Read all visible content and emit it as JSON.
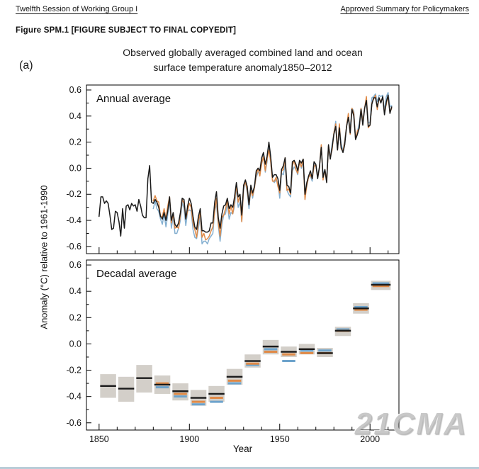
{
  "page": {
    "header_left": "Twelfth Session of Working Group I",
    "header_right": "Approved Summary for Policymakers",
    "figure_caption": "Figure SPM.1 [FIGURE SUBJECT TO FINAL COPYEDIT]",
    "panel_label": "(a)",
    "watermark": "21CMA"
  },
  "chart": {
    "title_line1": "Observed globally averaged combined land and ocean",
    "title_line2": "surface temperature anomaly1850–2012"
  },
  "axes": {
    "ylabel": "Anomaly (°C) relative to 1961-1990",
    "xlabel": "Year",
    "yticks": [
      0.6,
      0.4,
      0.2,
      0.0,
      -0.2,
      -0.4,
      -0.6
    ],
    "ytick_labels": [
      "0.6",
      "0.4",
      "0.2",
      "0.0",
      "-0.2",
      "-0.4",
      "-0.6"
    ],
    "xticks": [
      1850,
      1900,
      1950,
      2000
    ],
    "xtick_labels": [
      "1850",
      "1900",
      "1950",
      "2000"
    ],
    "minor_xtick_step": 10,
    "x_range": [
      1843,
      2016
    ],
    "y_range": [
      -0.655,
      0.638
    ],
    "grid": false,
    "legend": false
  },
  "chart_data": [
    {
      "type": "line",
      "title": "Annual average",
      "x_unit": "year",
      "y_unit": "°C anomaly vs 1961-1990",
      "series": [
        {
          "name": "black",
          "color": "#1a1a1a",
          "start_year": 1850,
          "values": [
            -0.37,
            -0.22,
            -0.22,
            -0.27,
            -0.25,
            -0.27,
            -0.36,
            -0.47,
            -0.46,
            -0.33,
            -0.34,
            -0.41,
            -0.52,
            -0.31,
            -0.46,
            -0.29,
            -0.28,
            -0.32,
            -0.27,
            -0.29,
            -0.28,
            -0.33,
            -0.24,
            -0.29,
            -0.36,
            -0.38,
            -0.38,
            -0.08,
            0.02,
            -0.26,
            -0.27,
            -0.24,
            -0.26,
            -0.3,
            -0.37,
            -0.39,
            -0.34,
            -0.4,
            -0.33,
            -0.22,
            -0.4,
            -0.34,
            -0.43,
            -0.45,
            -0.42,
            -0.34,
            -0.23,
            -0.24,
            -0.39,
            -0.29,
            -0.23,
            -0.27,
            -0.37,
            -0.45,
            -0.47,
            -0.37,
            -0.31,
            -0.48,
            -0.48,
            -0.49,
            -0.49,
            -0.48,
            -0.42,
            -0.42,
            -0.26,
            -0.18,
            -0.38,
            -0.46,
            -0.35,
            -0.29,
            -0.28,
            -0.23,
            -0.31,
            -0.28,
            -0.3,
            -0.22,
            -0.11,
            -0.22,
            -0.2,
            -0.36,
            -0.13,
            -0.09,
            -0.14,
            -0.28,
            -0.13,
            -0.19,
            -0.14,
            -0.02,
            0.0,
            -0.02,
            0.08,
            0.12,
            0.03,
            0.09,
            0.2,
            0.09,
            -0.07,
            -0.05,
            -0.05,
            -0.08,
            -0.17,
            -0.01,
            0.02,
            0.08,
            -0.13,
            -0.14,
            -0.19,
            0.05,
            0.06,
            0.03,
            -0.02,
            0.06,
            0.04,
            0.07,
            -0.2,
            -0.11,
            -0.06,
            -0.02,
            -0.08,
            0.05,
            0.03,
            -0.08,
            0.01,
            0.16,
            -0.07,
            -0.01,
            -0.11,
            0.18,
            0.07,
            0.16,
            0.26,
            0.32,
            0.14,
            0.31,
            0.16,
            0.12,
            0.18,
            0.32,
            0.39,
            0.27,
            0.45,
            0.4,
            0.22,
            0.26,
            0.31,
            0.45,
            0.33,
            0.46,
            0.52,
            0.32,
            0.33,
            0.49,
            0.54,
            0.54,
            0.47,
            0.54,
            0.5,
            0.55,
            0.41,
            0.51,
            0.56,
            0.42,
            0.47
          ]
        },
        {
          "name": "orange",
          "color": "#e08a47",
          "start_year": 1880,
          "values": [
            -0.25,
            -0.21,
            -0.25,
            -0.26,
            -0.37,
            -0.37,
            -0.31,
            -0.39,
            -0.29,
            -0.22,
            -0.42,
            -0.35,
            -0.46,
            -0.45,
            -0.46,
            -0.36,
            -0.24,
            -0.27,
            -0.39,
            -0.33,
            -0.27,
            -0.3,
            -0.42,
            -0.47,
            -0.53,
            -0.41,
            -0.34,
            -0.53,
            -0.5,
            -0.55,
            -0.54,
            -0.52,
            -0.48,
            -0.45,
            -0.33,
            -0.23,
            -0.42,
            -0.52,
            -0.38,
            -0.36,
            -0.31,
            -0.25,
            -0.35,
            -0.29,
            -0.35,
            -0.25,
            -0.13,
            -0.26,
            -0.21,
            -0.41,
            -0.15,
            -0.1,
            -0.17,
            -0.28,
            -0.17,
            -0.21,
            -0.15,
            -0.05,
            0.0,
            -0.06,
            0.04,
            0.09,
            -0.02,
            0.07,
            0.14,
            0.05,
            -0.1,
            -0.1,
            -0.07,
            -0.14,
            -0.19,
            -0.02,
            -0.01,
            0.08,
            -0.17,
            -0.16,
            -0.2,
            0.02,
            0.06,
            -0.01,
            -0.04,
            0.05,
            0.01,
            0.07,
            -0.24,
            -0.13,
            -0.07,
            -0.05,
            -0.08,
            0.01,
            0.03,
            -0.07,
            0.0,
            0.18,
            -0.09,
            -0.01,
            -0.1,
            0.17,
            0.09,
            0.14,
            0.27,
            0.34,
            0.14,
            0.34,
            0.15,
            0.13,
            0.2,
            0.32,
            0.42,
            0.26,
            0.46,
            0.42,
            0.22,
            0.29,
            0.3,
            0.46,
            0.35,
            0.46,
            0.55,
            0.31,
            0.33,
            0.5,
            0.53,
            0.56,
            0.45,
            0.54,
            0.51,
            0.54,
            0.43,
            0.49,
            0.56,
            0.43,
            0.46
          ]
        },
        {
          "name": "blue",
          "color": "#84afd0",
          "start_year": 1880,
          "values": [
            -0.31,
            -0.25,
            -0.31,
            -0.33,
            -0.39,
            -0.43,
            -0.35,
            -0.45,
            -0.36,
            -0.24,
            -0.46,
            -0.37,
            -0.5,
            -0.5,
            -0.46,
            -0.4,
            -0.26,
            -0.31,
            -0.44,
            -0.33,
            -0.32,
            -0.33,
            -0.47,
            -0.53,
            -0.54,
            -0.46,
            -0.37,
            -0.58,
            -0.56,
            -0.56,
            -0.58,
            -0.54,
            -0.52,
            -0.5,
            -0.33,
            -0.27,
            -0.44,
            -0.56,
            -0.43,
            -0.36,
            -0.35,
            -0.27,
            -0.39,
            -0.34,
            -0.35,
            -0.29,
            -0.15,
            -0.3,
            -0.26,
            -0.41,
            -0.17,
            -0.1,
            -0.19,
            -0.31,
            -0.15,
            -0.23,
            -0.15,
            -0.07,
            -0.03,
            -0.04,
            0.03,
            0.1,
            -0.03,
            0.05,
            0.17,
            0.04,
            -0.09,
            -0.11,
            -0.09,
            -0.11,
            -0.23,
            -0.04,
            -0.05,
            0.03,
            -0.17,
            -0.2,
            -0.22,
            -0.02,
            0.01,
            -0.01,
            -0.05,
            0.06,
            0.0,
            0.05,
            -0.21,
            -0.14,
            -0.06,
            -0.06,
            -0.1,
            0.04,
            0.03,
            -0.05,
            0.0,
            0.17,
            -0.05,
            -0.01,
            -0.08,
            0.17,
            0.08,
            0.18,
            0.27,
            0.36,
            0.14,
            0.33,
            0.19,
            0.13,
            0.22,
            0.32,
            0.41,
            0.3,
            0.46,
            0.44,
            0.22,
            0.28,
            0.34,
            0.46,
            0.37,
            0.46,
            0.54,
            0.35,
            0.35,
            0.54,
            0.55,
            0.57,
            0.51,
            0.56,
            0.55,
            0.56,
            0.44,
            0.55,
            0.58,
            0.47,
            0.48
          ]
        }
      ]
    },
    {
      "type": "bar",
      "title": "Decadal average",
      "box_color": "#d3cfc9",
      "orange_color": "#e08a47",
      "blue_color": "#6da3cc",
      "black_color": "#1a1a1a",
      "decades": [
        {
          "start": 1850,
          "end": 1860,
          "black": -0.32,
          "orange": null,
          "blue": null,
          "box_low": -0.41,
          "box_high": -0.23
        },
        {
          "start": 1860,
          "end": 1870,
          "black": -0.34,
          "orange": null,
          "blue": null,
          "box_low": -0.44,
          "box_high": -0.25
        },
        {
          "start": 1870,
          "end": 1880,
          "black": -0.26,
          "orange": null,
          "blue": null,
          "box_low": -0.37,
          "box_high": -0.16
        },
        {
          "start": 1880,
          "end": 1890,
          "black": -0.31,
          "orange": -0.3,
          "blue": -0.33,
          "box_low": -0.38,
          "box_high": -0.24
        },
        {
          "start": 1890,
          "end": 1900,
          "black": -0.36,
          "orange": -0.38,
          "blue": -0.4,
          "box_low": -0.43,
          "box_high": -0.3
        },
        {
          "start": 1900,
          "end": 1910,
          "black": -0.41,
          "orange": -0.44,
          "blue": -0.46,
          "box_low": -0.47,
          "box_high": -0.35
        },
        {
          "start": 1910,
          "end": 1920,
          "black": -0.38,
          "orange": -0.41,
          "blue": -0.44,
          "box_low": -0.44,
          "box_high": -0.32
        },
        {
          "start": 1920,
          "end": 1930,
          "black": -0.25,
          "orange": -0.28,
          "blue": -0.3,
          "box_low": -0.31,
          "box_high": -0.19
        },
        {
          "start": 1930,
          "end": 1940,
          "black": -0.13,
          "orange": -0.15,
          "blue": -0.16,
          "box_low": -0.18,
          "box_high": -0.08
        },
        {
          "start": 1940,
          "end": 1950,
          "black": -0.02,
          "orange": -0.06,
          "blue": -0.04,
          "box_low": -0.08,
          "box_high": 0.03
        },
        {
          "start": 1950,
          "end": 1960,
          "black": -0.06,
          "orange": -0.08,
          "blue": -0.13,
          "box_low": -0.1,
          "box_high": -0.02
        },
        {
          "start": 1960,
          "end": 1970,
          "black": -0.04,
          "orange": -0.07,
          "blue": -0.05,
          "box_low": -0.08,
          "box_high": 0.0
        },
        {
          "start": 1970,
          "end": 1980,
          "black": -0.07,
          "orange": -0.07,
          "blue": -0.05,
          "box_low": -0.1,
          "box_high": -0.03
        },
        {
          "start": 1980,
          "end": 1990,
          "black": 0.1,
          "orange": 0.1,
          "blue": 0.11,
          "box_low": 0.06,
          "box_high": 0.13
        },
        {
          "start": 1990,
          "end": 2000,
          "black": 0.27,
          "orange": 0.26,
          "blue": 0.28,
          "box_low": 0.23,
          "box_high": 0.31
        },
        {
          "start": 2000,
          "end": 2012,
          "black": 0.45,
          "orange": 0.44,
          "blue": 0.46,
          "box_low": 0.41,
          "box_high": 0.48
        }
      ]
    }
  ]
}
